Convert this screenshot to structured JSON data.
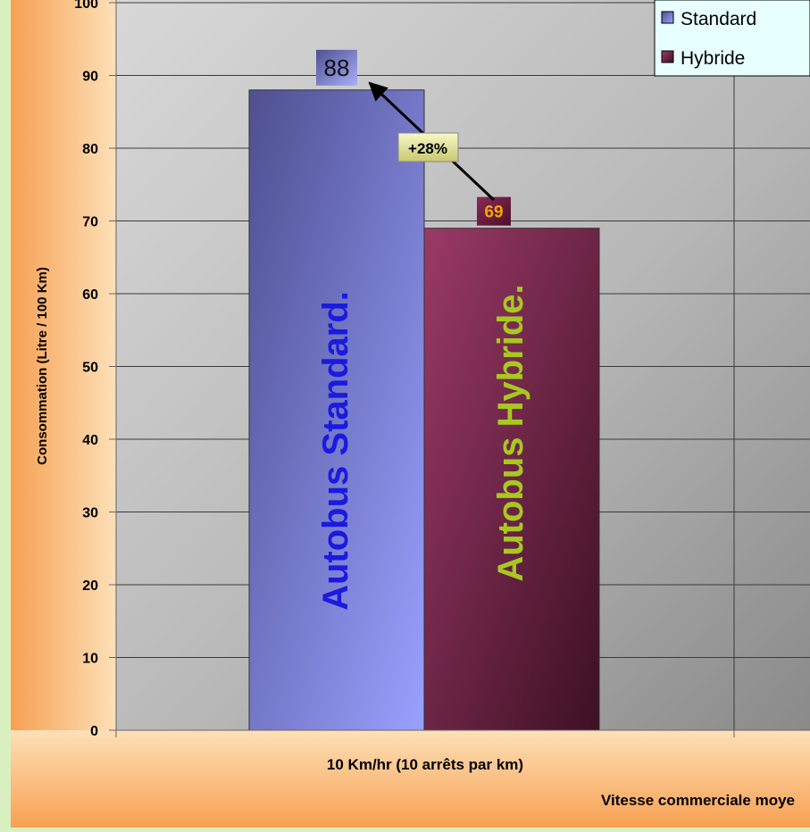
{
  "chart_data": {
    "type": "bar",
    "categories": [
      "10 Km/hr (10 arrêts par km)"
    ],
    "series": [
      {
        "name": "Standard",
        "values": [
          88
        ],
        "color": "#7a7fd8",
        "inner_label": "Autobus Standard.",
        "inner_label_color": "#1a1ae0"
      },
      {
        "name": "Hybride",
        "values": [
          69
        ],
        "color": "#7a2a4e",
        "inner_label": "Autobus Hybride.",
        "inner_label_color": "#a8c820"
      }
    ],
    "data_labels": [
      "88",
      "69"
    ],
    "xlabel": "Vitesse commerciale moye",
    "ylabel": "Consommation (Litre / 100 Km)",
    "ylim": [
      0,
      100
    ],
    "yticks": [
      0,
      10,
      20,
      30,
      40,
      50,
      60,
      70,
      80,
      90,
      100
    ],
    "ytick_labels": [
      "0",
      "10",
      "20",
      "30",
      "40",
      "50",
      "60",
      "70",
      "80",
      "90",
      "100"
    ],
    "grid": true,
    "legend_position": "top-right",
    "annotation": {
      "text": "+28%",
      "from": 69,
      "to": 88
    }
  }
}
